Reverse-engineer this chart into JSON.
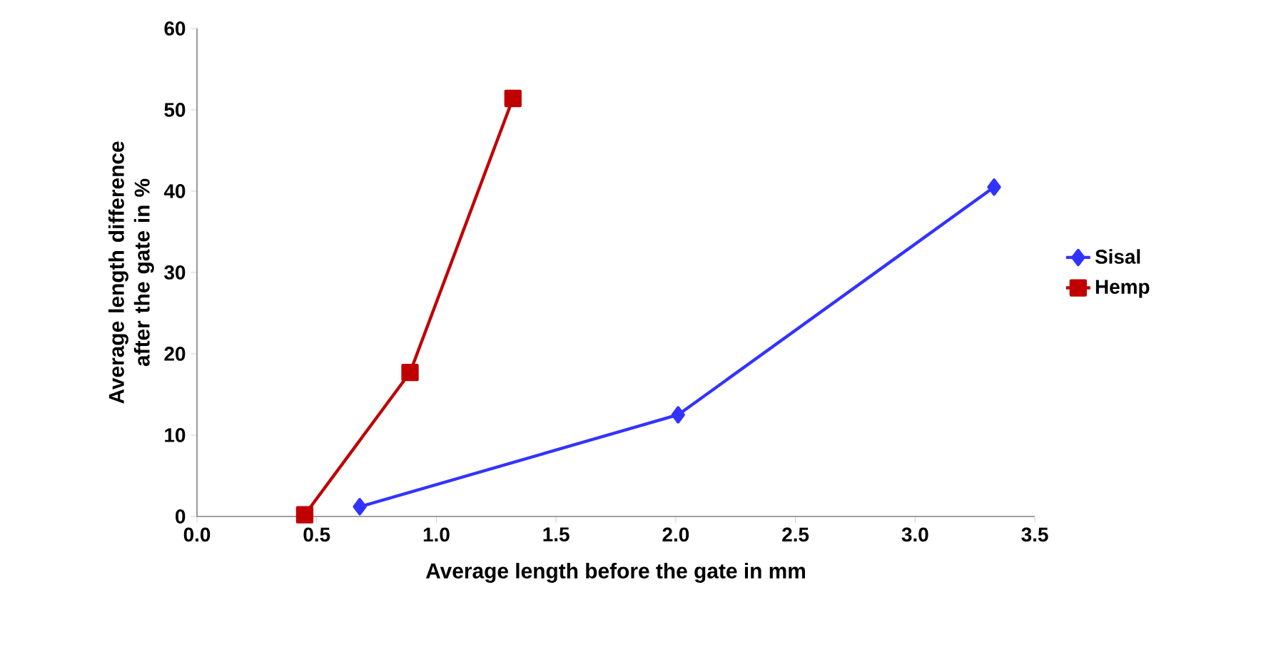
{
  "chart_data": {
    "type": "line",
    "xlabel": "Average length before the gate in mm",
    "ylabel": "Average length difference after the gate in %",
    "xlim": [
      0,
      3.5
    ],
    "xticks": [
      {
        "value": 0,
        "label": "0.0"
      },
      0.5,
      {
        "value": 1,
        "label": "1.0"
      },
      1.5,
      {
        "value": 2,
        "label": "2.0"
      },
      2.5,
      {
        "value": 3,
        "label": "3.0"
      },
      3.5
    ],
    "ylim": [
      0,
      60
    ],
    "yticks": [
      0,
      10,
      20,
      30,
      40,
      50,
      60
    ],
    "grid": false,
    "legend": "right",
    "line_style": "solid",
    "series": [
      {
        "name": "Sisal",
        "color": "#3333ff",
        "marker": "diamond",
        "x": [
          0.68,
          2.01,
          3.33
        ],
        "values": [
          1.2,
          12.5,
          40.5
        ]
      },
      {
        "name": "Hemp",
        "color": "#c00000",
        "marker": "square",
        "x": [
          0.45,
          0.89,
          1.32
        ],
        "values": [
          0.2,
          17.7,
          51.4
        ]
      }
    ]
  }
}
